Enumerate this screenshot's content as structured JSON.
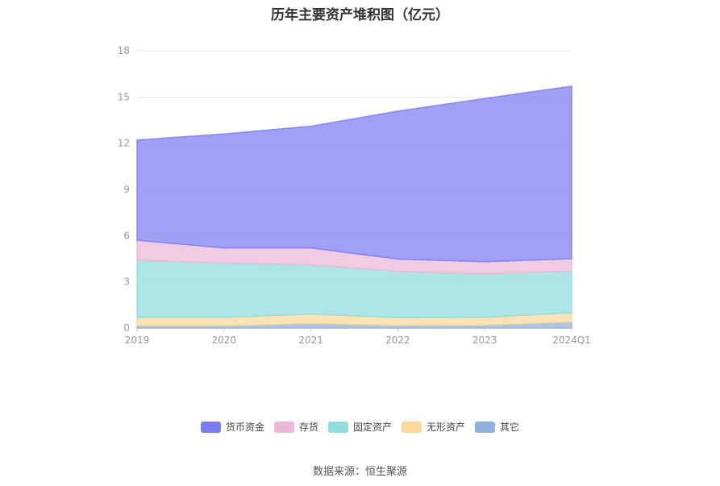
{
  "chart_data": {
    "type": "area",
    "stacked": true,
    "title": "历年主要资产堆积图（亿元）",
    "categories": [
      "2019",
      "2020",
      "2021",
      "2022",
      "2023",
      "2024Q1"
    ],
    "ylim": [
      0,
      18
    ],
    "yticks": [
      0,
      3,
      6,
      9,
      12,
      15,
      18
    ],
    "grid": true,
    "legend_position": "bottom",
    "series": [
      {
        "name": "其它",
        "color": "#8fb0dc",
        "values": [
          0.15,
          0.15,
          0.3,
          0.18,
          0.2,
          0.4
        ]
      },
      {
        "name": "无形资产",
        "color": "#fbd99a",
        "values": [
          0.55,
          0.55,
          0.6,
          0.5,
          0.5,
          0.6
        ]
      },
      {
        "name": "固定资产",
        "color": "#8fdcdc",
        "values": [
          3.7,
          3.5,
          3.2,
          3.0,
          2.8,
          2.7
        ]
      },
      {
        "name": "存货",
        "color": "#eab8d8",
        "values": [
          1.3,
          1.0,
          1.1,
          0.8,
          0.8,
          0.8
        ]
      },
      {
        "name": "货币资金",
        "color": "#7c7cf2",
        "values": [
          6.5,
          7.4,
          7.9,
          9.6,
          10.6,
          11.2
        ]
      }
    ]
  },
  "legend": [
    {
      "name": "货币资金",
      "color": "#7c7cf2"
    },
    {
      "name": "存货",
      "color": "#eab8d8"
    },
    {
      "name": "固定资产",
      "color": "#8fdcdc"
    },
    {
      "name": "无形资产",
      "color": "#fbd99a"
    },
    {
      "name": "其它",
      "color": "#8fb0dc"
    }
  ],
  "source": "数据来源：恒生聚源"
}
